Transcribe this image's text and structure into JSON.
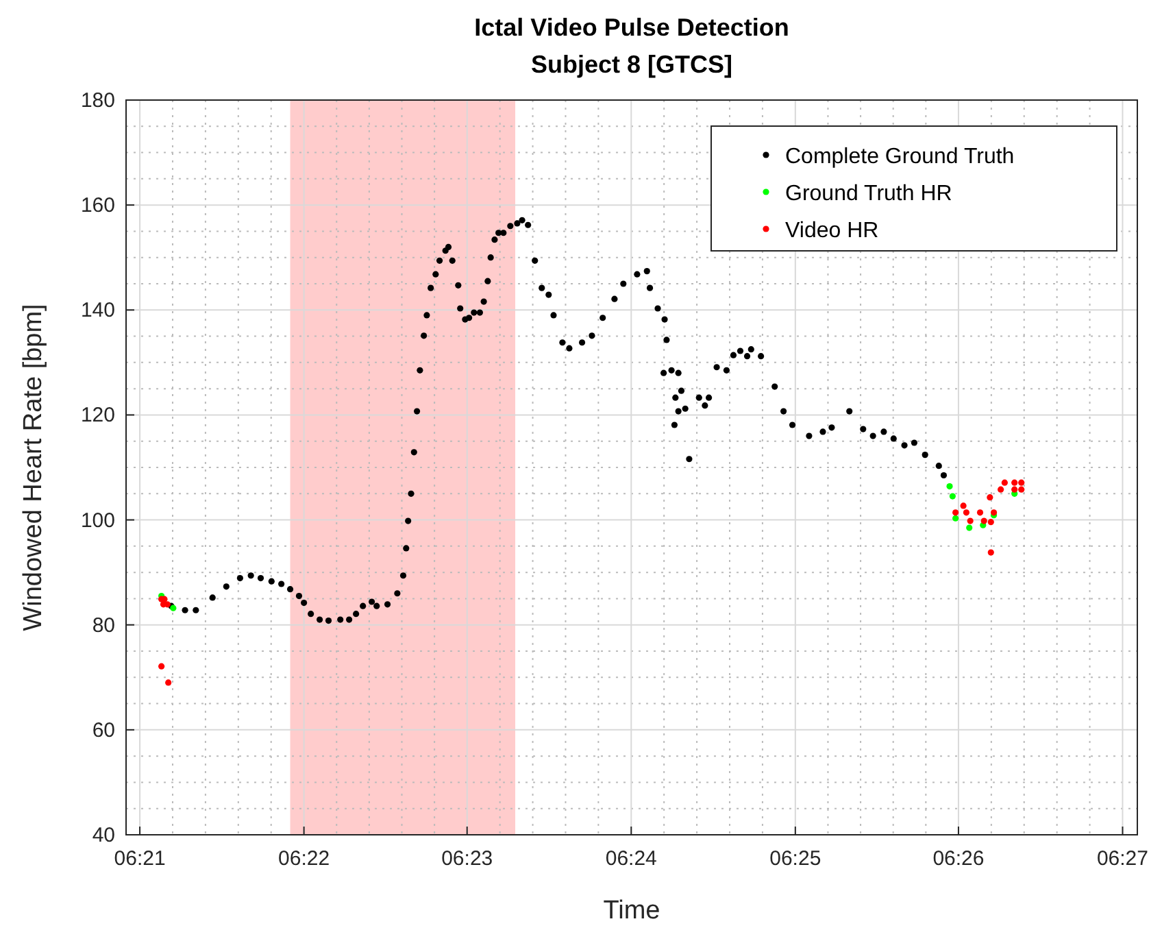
{
  "chart_data": {
    "type": "scatter",
    "title": "Ictal Video Pulse Detection",
    "subtitle": "Subject 8 [GTCS]",
    "xlabel": "Time",
    "ylabel": "Windowed Heart Rate [bpm]",
    "xlim": [
      6.3486,
      6.4515
    ],
    "xticks": [
      {
        "value": 6.35,
        "label": "06:21"
      },
      {
        "value": 6.3667,
        "label": "06:22"
      },
      {
        "value": 6.3833,
        "label": "06:23"
      },
      {
        "value": 6.4,
        "label": "06:24"
      },
      {
        "value": 6.4167,
        "label": "06:25"
      },
      {
        "value": 6.4333,
        "label": "06:26"
      },
      {
        "value": 6.45,
        "label": "06:27"
      }
    ],
    "ylim": [
      40,
      180
    ],
    "yticks": [
      40,
      60,
      80,
      100,
      120,
      140,
      160,
      180
    ],
    "grid": true,
    "legend": "top right",
    "marker": "circle",
    "bands": [
      {
        "axis": "x",
        "from": 6.3653,
        "to": 6.3882,
        "color": "#ffcccc"
      }
    ],
    "series": [
      {
        "name": "Complete Ground Truth",
        "color": "#000000",
        "x": [
          6.3532,
          6.3546,
          6.3557,
          6.3574,
          6.3588,
          6.3602,
          6.3613,
          6.3623,
          6.3634,
          6.3644,
          6.3653,
          6.3662,
          6.3667,
          6.3674,
          6.3683,
          6.3692,
          6.3704,
          6.3713,
          6.372,
          6.3727,
          6.3736,
          6.3741,
          6.3752,
          6.3762,
          6.3768,
          6.3771,
          6.3773,
          6.3776,
          6.3779,
          6.3782,
          6.3785,
          6.3789,
          6.3792,
          6.3796,
          6.3801,
          6.3805,
          6.3811,
          6.3814,
          6.3818,
          6.3824,
          6.3826,
          6.3831,
          6.3835,
          6.384,
          6.3846,
          6.385,
          6.3854,
          6.3857,
          6.3861,
          6.3865,
          6.387,
          6.3877,
          6.3884,
          6.3889,
          6.3895,
          6.3902,
          6.3909,
          6.3916,
          6.3921,
          6.393,
          6.3937,
          6.395,
          6.396,
          6.3971,
          6.3983,
          6.3992,
          6.4006,
          6.4016,
          6.4019,
          6.4027,
          6.4034,
          6.4036,
          6.4033,
          6.4041,
          6.4048,
          6.4051,
          6.4055,
          6.4045,
          6.4048,
          6.4044,
          6.4059,
          6.4069,
          6.4075,
          6.4079,
          6.4087,
          6.4097,
          6.4104,
          6.4111,
          6.4118,
          6.4122,
          6.4132,
          6.4146,
          6.4155,
          6.4164,
          6.4181,
          6.4195,
          6.4204,
          6.4222,
          6.4236,
          6.4246,
          6.4257,
          6.4267,
          6.4278,
          6.4288,
          6.4299,
          6.4313,
          6.4318
        ],
        "values": [
          83.6,
          82.8,
          82.8,
          85.2,
          87.3,
          88.9,
          89.4,
          88.9,
          88.3,
          87.8,
          86.8,
          85.5,
          84.2,
          82.1,
          81.0,
          80.8,
          81.0,
          81.0,
          82.1,
          83.6,
          84.4,
          83.6,
          83.9,
          86.0,
          89.4,
          94.6,
          99.8,
          105.0,
          112.9,
          120.7,
          128.5,
          135.1,
          139.0,
          144.2,
          146.8,
          149.4,
          151.3,
          152.0,
          149.4,
          144.7,
          140.3,
          138.2,
          138.5,
          139.5,
          139.5,
          141.6,
          145.5,
          150.0,
          153.4,
          154.7,
          154.7,
          156.0,
          156.5,
          157.1,
          156.2,
          149.4,
          144.2,
          142.9,
          139.0,
          133.8,
          132.7,
          133.8,
          135.1,
          138.5,
          142.1,
          145.0,
          146.8,
          147.4,
          144.2,
          140.3,
          138.2,
          134.3,
          128.0,
          128.5,
          128.0,
          124.6,
          121.2,
          123.3,
          120.7,
          118.1,
          111.6,
          123.3,
          121.8,
          123.3,
          129.1,
          128.5,
          131.4,
          132.2,
          131.2,
          132.5,
          131.2,
          125.4,
          120.7,
          118.1,
          116.0,
          116.8,
          117.6,
          120.7,
          117.3,
          116.0,
          116.8,
          115.5,
          114.2,
          114.7,
          112.4,
          110.3,
          108.5
        ]
      },
      {
        "name": "Ground Truth HR",
        "color": "#00ff00",
        "x": [
          6.3522,
          6.3534,
          6.4324,
          6.4327,
          6.433,
          6.4344,
          6.4358,
          6.4369,
          6.439
        ],
        "values": [
          85.5,
          83.2,
          106.4,
          104.5,
          100.3,
          98.5,
          99.0,
          100.9,
          105.0
        ]
      },
      {
        "name": "Video HR",
        "color": "#ff0000",
        "x": [
          6.3522,
          6.3525,
          6.3524,
          6.3528,
          6.3522,
          6.3529,
          6.433,
          6.4341,
          6.4355,
          6.4369,
          6.4338,
          6.4345,
          6.4359,
          6.4366,
          6.4366,
          6.4365,
          6.4376,
          6.439,
          6.4397,
          6.438,
          6.439,
          6.4397
        ],
        "values": [
          84.9,
          84.9,
          83.9,
          83.9,
          72.1,
          69.0,
          101.4,
          101.4,
          101.4,
          101.4,
          102.7,
          99.8,
          99.8,
          99.6,
          93.8,
          104.3,
          105.8,
          105.8,
          105.8,
          107.1,
          107.1,
          107.1
        ]
      }
    ]
  }
}
